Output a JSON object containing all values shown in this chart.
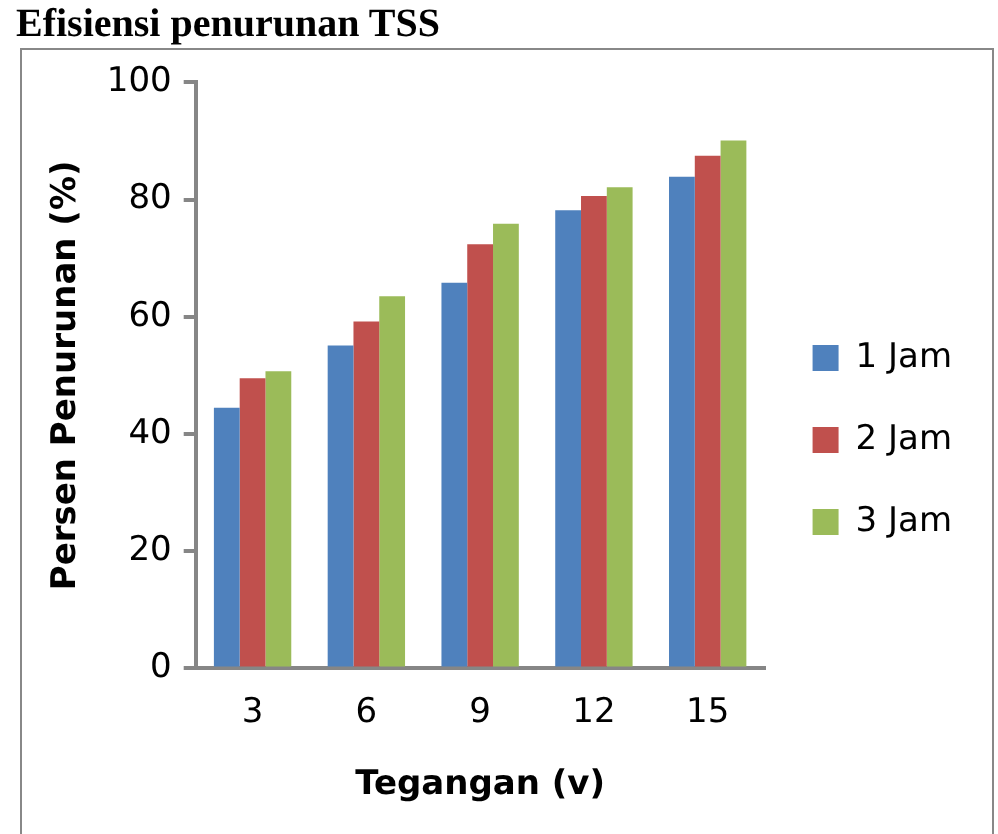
{
  "chart_data": {
    "type": "bar",
    "title": "Efisiensi penurunan TSS",
    "xlabel": "Tegangan (v)",
    "ylabel": "Persen Penurunan (%)",
    "categories": [
      "3",
      "6",
      "9",
      "12",
      "15"
    ],
    "series": [
      {
        "name": "1 Jam",
        "color": "#4f81bd",
        "values": [
          44.5,
          55.1,
          65.8,
          78.2,
          83.9
        ]
      },
      {
        "name": "2 Jam",
        "color": "#c0504d",
        "values": [
          49.5,
          59.2,
          72.4,
          80.6,
          87.5
        ]
      },
      {
        "name": "3 Jam",
        "color": "#9bbb59",
        "values": [
          50.7,
          63.5,
          75.9,
          82.1,
          90.1
        ]
      }
    ],
    "ylim": [
      0,
      100
    ],
    "yticks": [
      0,
      20,
      40,
      60,
      80,
      100
    ],
    "grid": false,
    "legend": "right"
  }
}
